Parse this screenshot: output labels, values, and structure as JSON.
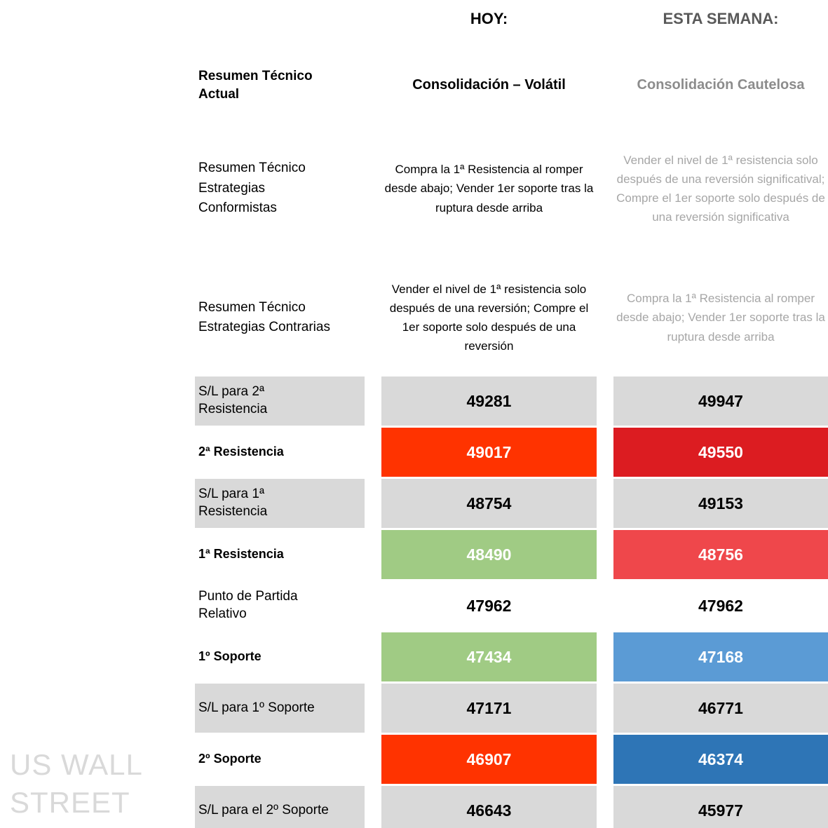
{
  "title_row": {
    "hoy": "HOY:",
    "semana": "ESTA SEMANA:"
  },
  "summary_row": {
    "label": "Resumen Técnico\nActual",
    "hoy": "Consolidación – Volátil",
    "semana": "Consolidación Cautelosa"
  },
  "strategy_rows": [
    {
      "label": "Resumen Técnico\nEstrategias\nConformistas",
      "hoy": "Compra la 1ª Resistencia al romper desde abajo; Vender 1er soporte tras la ruptura desde arriba",
      "semana": "Vender el nivel de 1ª resistencia solo después de una reversión significatival; Compre el 1er soporte solo después de una reversión significativa"
    },
    {
      "label": "Resumen Técnico\nEstrategias Contrarias",
      "hoy": "Vender el nivel de 1ª resistencia solo después de una reversión; Compre el 1er soporte solo después de una reversión",
      "semana": "Compra la 1ª Resistencia al romper desde abajo; Vender 1er soporte tras la ruptura desde arriba"
    }
  ],
  "levels_table": {
    "rows": [
      {
        "label": "S/L para 2ª\nResistencia",
        "label_style": "gray",
        "hoy": {
          "value": "49281",
          "style": "gray"
        },
        "semana": {
          "value": "49947",
          "style": "gray"
        }
      },
      {
        "label": "2ª Resistencia",
        "label_style": "white-bold",
        "hoy": {
          "value": "49017",
          "style": "orange"
        },
        "semana": {
          "value": "49550",
          "style": "red"
        }
      },
      {
        "label": "S/L para 1ª\nResistencia",
        "label_style": "gray",
        "hoy": {
          "value": "48754",
          "style": "gray"
        },
        "semana": {
          "value": "49153",
          "style": "gray"
        }
      },
      {
        "label": "1ª Resistencia",
        "label_style": "white-bold",
        "hoy": {
          "value": "48490",
          "style": "green"
        },
        "semana": {
          "value": "48756",
          "style": "lightred"
        }
      },
      {
        "label": "Punto de Partida\nRelativo",
        "label_style": "white",
        "hoy": {
          "value": "47962",
          "style": "white"
        },
        "semana": {
          "value": "47962",
          "style": "white"
        }
      },
      {
        "label": "1º Soporte",
        "label_style": "white-bold",
        "hoy": {
          "value": "47434",
          "style": "green"
        },
        "semana": {
          "value": "47168",
          "style": "lightblue"
        }
      },
      {
        "label": "S/L para 1º Soporte",
        "label_style": "gray",
        "hoy": {
          "value": "47171",
          "style": "gray"
        },
        "semana": {
          "value": "46771",
          "style": "gray"
        }
      },
      {
        "label": "2º Soporte",
        "label_style": "white-bold",
        "hoy": {
          "value": "46907",
          "style": "orange"
        },
        "semana": {
          "value": "46374",
          "style": "darkblue"
        }
      },
      {
        "label": "S/L para el 2º Soporte",
        "label_style": "gray",
        "hoy": {
          "value": "46643",
          "style": "gray"
        },
        "semana": {
          "value": "45977",
          "style": "gray"
        }
      }
    ]
  },
  "watermark": "US WALL STREET",
  "colors": {
    "cell-gray": "#D9D9D9",
    "cell-white": "#FFFFFF",
    "cell-orange": "#FF3300",
    "cell-red": "#DC1C21",
    "cell-green": "#A0CB84",
    "cell-lightred": "#EF474B",
    "cell-lightblue": "#5B9BD5",
    "cell-darkblue": "#2E75B6",
    "text-header-gray": "#595959",
    "text-subheader-gray": "#8C8C8C",
    "text-body-gray": "#A6A6A6",
    "text-watermark": "#D9D9D9"
  }
}
